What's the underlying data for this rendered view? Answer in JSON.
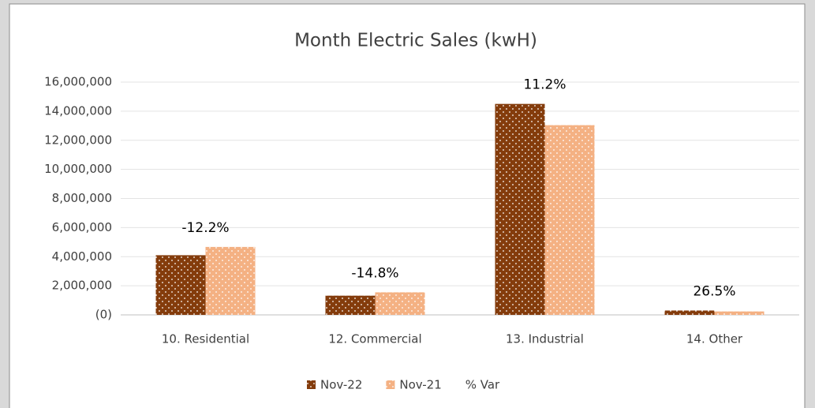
{
  "chart_data": {
    "type": "bar",
    "title": "Month Electric Sales (kwH)",
    "categories": [
      "10. Residential",
      "12. Commercial",
      "13. Industrial",
      "14. Other"
    ],
    "series": [
      {
        "name": "Nov-22",
        "color": "#843c0c",
        "values": [
          4100000,
          1320000,
          14500000,
          300000
        ]
      },
      {
        "name": "Nov-21",
        "color": "#f4b183",
        "values": [
          4670000,
          1550000,
          13040000,
          237000
        ]
      },
      {
        "name": "% Var",
        "values": [
          -12.2,
          -14.8,
          11.2,
          26.5
        ],
        "value_labels": [
          "-12.2%",
          "-14.8%",
          "11.2%",
          "26.5%"
        ]
      }
    ],
    "ylim": [
      0,
      16000000
    ],
    "yticks": [
      {
        "value": 0,
        "label": "(0)"
      },
      {
        "value": 2000000,
        "label": "2,000,000"
      },
      {
        "value": 4000000,
        "label": "4,000,000"
      },
      {
        "value": 6000000,
        "label": "6,000,000"
      },
      {
        "value": 8000000,
        "label": "8,000,000"
      },
      {
        "value": 10000000,
        "label": "10,000,000"
      },
      {
        "value": 12000000,
        "label": "12,000,000"
      },
      {
        "value": 14000000,
        "label": "14,000,000"
      },
      {
        "value": 16000000,
        "label": "16,000,000"
      }
    ],
    "grid": true,
    "legend": "bottom"
  }
}
